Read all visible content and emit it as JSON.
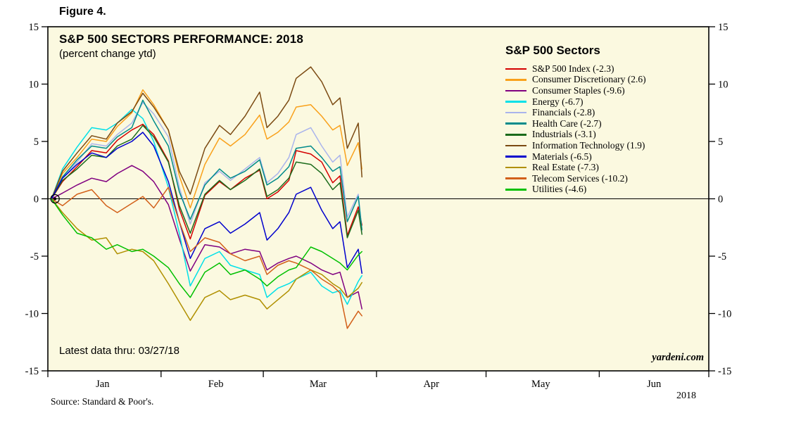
{
  "figure_label": "Figure 4.",
  "notes": {
    "latest_data": "Latest data thru: 03/27/18",
    "watermark": "yardeni.com",
    "source": "Source: Standard & Poor's."
  },
  "colors": {
    "plot_bg": "#FBF9E0",
    "frame": "#000000",
    "zero_line": "#000000",
    "text": "#000000"
  },
  "chart_data": {
    "type": "line",
    "title": "S&P 500 SECTORS PERFORMANCE: 2018",
    "subtitle": "(percent change ytd)",
    "legend_title": "S&P 500 Sectors",
    "legend_position": "top-right",
    "grid": false,
    "zero_line": true,
    "ylim": [
      -15,
      15
    ],
    "yticks": [
      -15,
      -10,
      -5,
      0,
      5,
      10,
      15
    ],
    "x_range_days": [
      0,
      181
    ],
    "month_boundaries": [
      0,
      31,
      59,
      90,
      120,
      151,
      181
    ],
    "month_labels": [
      "Jan",
      "Feb",
      "Mar",
      "Apr",
      "May",
      "Jun"
    ],
    "month_label_days": [
      15,
      46,
      74,
      105,
      135,
      166
    ],
    "year_label": "2018",
    "x_days": [
      1,
      4,
      8,
      12,
      16,
      19,
      23,
      26,
      29,
      33,
      36,
      39,
      43,
      47,
      50,
      54,
      58,
      60,
      63,
      66,
      68,
      72,
      75,
      78,
      80,
      82,
      85,
      86
    ],
    "series": [
      {
        "name": "sp500-index",
        "label": "S&P 500 Index (-2.3)",
        "value": -2.3,
        "color": "#D40000",
        "y": [
          0,
          1.5,
          2.8,
          4.2,
          4.0,
          5.1,
          6.0,
          6.5,
          5.6,
          3.3,
          -0.9,
          -3.5,
          0.3,
          1.5,
          0.8,
          1.8,
          2.5,
          0.0,
          0.6,
          1.6,
          4.2,
          3.9,
          3.2,
          1.4,
          2.0,
          -3.2,
          -0.7,
          -2.3
        ]
      },
      {
        "name": "consumer-discretionary",
        "label": "Consumer Discretionary (2.6)",
        "value": 2.6,
        "color": "#F9A11B",
        "y": [
          0,
          2.2,
          3.6,
          5.2,
          5.0,
          6.3,
          7.5,
          9.5,
          8.2,
          6.0,
          2.0,
          -0.8,
          3.0,
          5.3,
          4.6,
          5.6,
          7.3,
          5.2,
          5.8,
          6.7,
          8.0,
          8.2,
          7.2,
          6.0,
          6.4,
          2.9,
          4.9,
          2.6
        ]
      },
      {
        "name": "consumer-staples",
        "label": "Consumer Staples (-9.6)",
        "value": -9.6,
        "color": "#800080",
        "y": [
          0,
          0.5,
          1.2,
          1.8,
          1.5,
          2.2,
          2.9,
          2.4,
          1.5,
          -0.5,
          -3.5,
          -6.3,
          -4.0,
          -4.2,
          -4.8,
          -4.4,
          -4.6,
          -6.2,
          -5.6,
          -5.2,
          -5.0,
          -5.6,
          -6.2,
          -6.6,
          -6.4,
          -8.6,
          -8.1,
          -9.6
        ]
      },
      {
        "name": "energy",
        "label": "Energy (-6.7)",
        "value": -6.7,
        "color": "#00E0E8",
        "y": [
          0,
          2.6,
          4.5,
          6.2,
          6.0,
          6.6,
          7.8,
          7.0,
          5.0,
          1.0,
          -3.0,
          -7.6,
          -5.2,
          -4.6,
          -5.8,
          -6.2,
          -6.6,
          -8.6,
          -7.8,
          -7.4,
          -7.0,
          -6.4,
          -7.6,
          -8.2,
          -8.0,
          -9.2,
          -7.2,
          -6.7
        ]
      },
      {
        "name": "financials",
        "label": "Financials (-2.8)",
        "value": -2.8,
        "color": "#AAB4EC",
        "y": [
          0,
          1.8,
          3.2,
          4.8,
          4.6,
          5.6,
          6.6,
          8.4,
          7.4,
          5.4,
          1.0,
          -2.2,
          1.4,
          2.4,
          1.6,
          2.6,
          3.6,
          1.4,
          2.2,
          3.6,
          5.6,
          6.2,
          4.6,
          3.2,
          3.8,
          -1.6,
          0.4,
          -2.8
        ]
      },
      {
        "name": "health-care",
        "label": "Health Care (-2.7)",
        "value": -2.7,
        "color": "#008B8B",
        "y": [
          0,
          1.9,
          3.4,
          4.6,
          4.4,
          5.4,
          6.2,
          8.6,
          6.8,
          4.6,
          0.6,
          -1.8,
          1.2,
          2.6,
          1.8,
          2.4,
          3.4,
          1.2,
          1.8,
          2.8,
          4.4,
          4.6,
          3.6,
          2.4,
          2.8,
          -2.0,
          0.2,
          -2.7
        ]
      },
      {
        "name": "industrials",
        "label": "Industrials (-3.1)",
        "value": -3.1,
        "color": "#1B6B1B",
        "y": [
          0,
          1.6,
          2.6,
          3.8,
          3.6,
          4.6,
          5.2,
          6.4,
          5.4,
          3.2,
          -0.6,
          -3.0,
          0.4,
          1.6,
          0.8,
          1.6,
          2.6,
          0.2,
          0.8,
          1.8,
          3.2,
          3.0,
          2.2,
          0.8,
          1.4,
          -3.4,
          -1.0,
          -3.1
        ]
      },
      {
        "name": "information-technology",
        "label": "Information Technology (1.9)",
        "value": 1.9,
        "color": "#7B4A12",
        "y": [
          0,
          2.4,
          4.0,
          5.5,
          5.2,
          6.6,
          7.6,
          9.2,
          8.0,
          6.0,
          2.4,
          0.4,
          4.4,
          6.4,
          5.6,
          7.2,
          9.3,
          6.2,
          7.2,
          8.6,
          10.5,
          11.5,
          10.2,
          8.2,
          8.8,
          4.4,
          6.6,
          1.9
        ]
      },
      {
        "name": "materials",
        "label": "Materials (-6.5)",
        "value": -6.5,
        "color": "#0000CD",
        "y": [
          0,
          1.8,
          3.0,
          4.0,
          3.6,
          4.4,
          5.0,
          5.8,
          4.6,
          1.5,
          -2.0,
          -5.2,
          -2.6,
          -2.0,
          -3.0,
          -2.2,
          -1.2,
          -3.6,
          -2.6,
          -1.2,
          0.4,
          1.0,
          -1.0,
          -2.6,
          -2.0,
          -6.0,
          -4.4,
          -6.5
        ]
      },
      {
        "name": "real-estate",
        "label": "Real Estate (-7.3)",
        "value": -7.3,
        "color": "#B09000",
        "y": [
          0,
          -1.2,
          -2.6,
          -3.6,
          -3.4,
          -4.8,
          -4.4,
          -4.6,
          -5.4,
          -7.4,
          -9.0,
          -10.6,
          -8.6,
          -8.0,
          -8.8,
          -8.4,
          -8.8,
          -9.6,
          -8.8,
          -8.0,
          -7.0,
          -6.2,
          -6.6,
          -7.4,
          -7.8,
          -8.6,
          -7.8,
          -7.3
        ]
      },
      {
        "name": "telecom-services",
        "label": "Telecom Services (-10.2)",
        "value": -10.2,
        "color": "#D2601A",
        "y": [
          0,
          -0.6,
          0.4,
          0.8,
          -0.6,
          -1.2,
          -0.4,
          0.2,
          -0.8,
          1.0,
          -2.0,
          -4.6,
          -3.4,
          -3.8,
          -4.8,
          -5.4,
          -5.0,
          -6.6,
          -5.8,
          -5.4,
          -5.6,
          -6.2,
          -7.0,
          -7.6,
          -8.2,
          -11.3,
          -9.8,
          -10.2
        ]
      },
      {
        "name": "utilities",
        "label": "Utilities (-4.6)",
        "value": -4.6,
        "color": "#00C000",
        "y": [
          0,
          -1.4,
          -3.0,
          -3.4,
          -4.4,
          -4.0,
          -4.6,
          -4.4,
          -5.0,
          -6.0,
          -7.4,
          -8.6,
          -6.4,
          -5.6,
          -6.6,
          -6.2,
          -7.0,
          -7.6,
          -6.8,
          -6.2,
          -6.0,
          -4.2,
          -4.6,
          -5.2,
          -5.6,
          -6.2,
          -4.9,
          -4.6
        ]
      }
    ]
  }
}
